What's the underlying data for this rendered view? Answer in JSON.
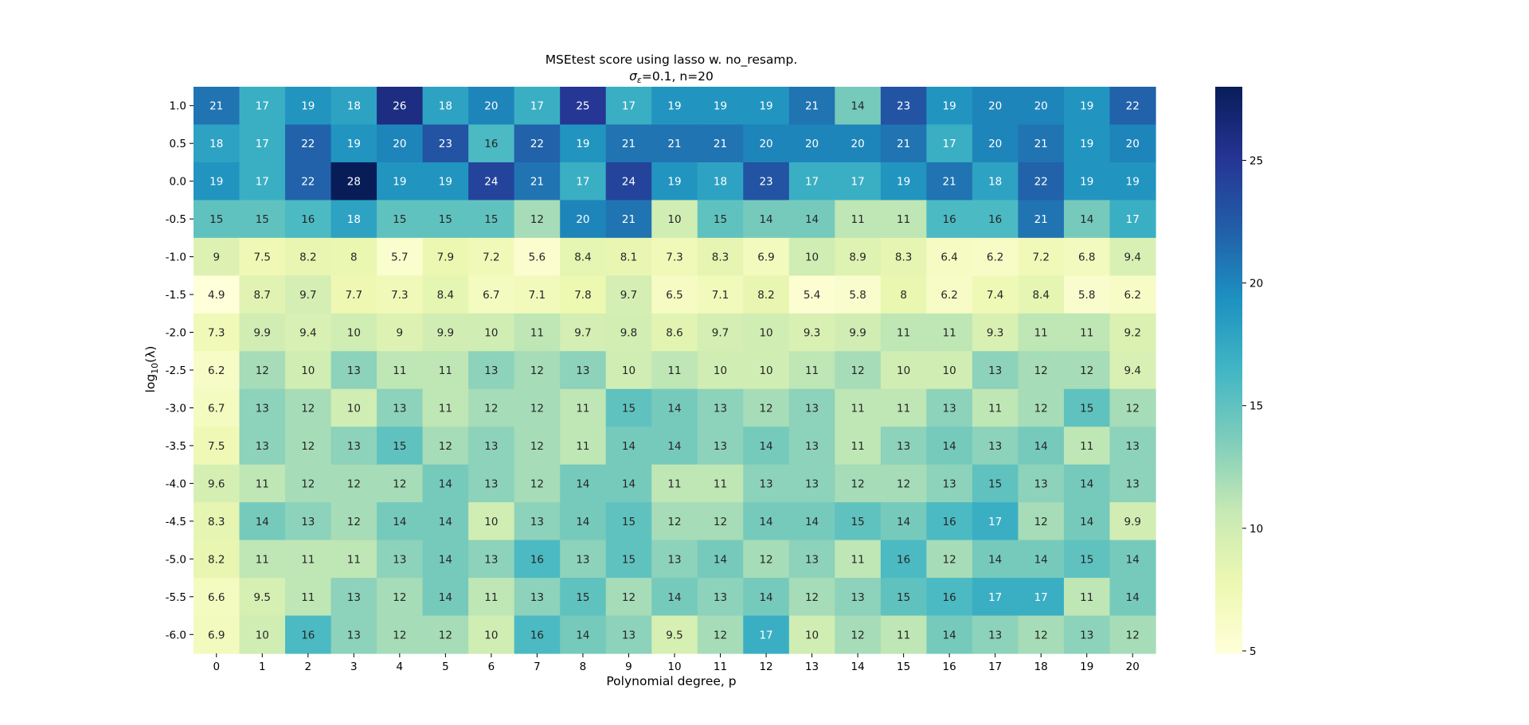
{
  "chart_data": {
    "type": "heatmap",
    "title": "MSEtest score using lasso w. no_resamp.",
    "subtitle_sigma_symbol": "σ",
    "subtitle_sigma_sub": "ε",
    "subtitle_rest": "=0.1,  n=20",
    "xlabel": "Polynomial degree, p",
    "ylabel_prefix": "log",
    "ylabel_sub": "10",
    "ylabel_suffix": "(λ)",
    "x": [
      "0",
      "1",
      "2",
      "3",
      "4",
      "5",
      "6",
      "7",
      "8",
      "9",
      "10",
      "11",
      "12",
      "13",
      "14",
      "15",
      "16",
      "17",
      "18",
      "19",
      "20"
    ],
    "y": [
      "1.0",
      "0.5",
      "0.0",
      "-0.5",
      "-1.0",
      "-1.5",
      "-2.0",
      "-2.5",
      "-3.0",
      "-3.5",
      "-4.0",
      "-4.5",
      "-5.0",
      "-5.5",
      "-6.0"
    ],
    "values": [
      [
        21,
        17,
        19,
        18,
        26,
        18,
        20,
        17,
        25,
        17,
        19,
        19,
        19,
        21,
        14,
        23,
        19,
        20,
        20,
        19,
        22
      ],
      [
        18,
        17,
        22,
        19,
        20,
        23,
        16,
        22,
        19,
        21,
        21,
        21,
        20,
        20,
        20,
        21,
        17,
        20,
        21,
        19,
        20
      ],
      [
        19,
        17,
        22,
        28,
        19,
        19,
        24,
        21,
        17,
        24,
        19,
        18,
        23,
        17,
        17,
        19,
        21,
        18,
        22,
        19,
        19
      ],
      [
        15,
        15,
        16,
        18,
        15,
        15,
        15,
        12,
        20,
        21,
        10,
        15,
        14,
        14,
        11,
        11,
        16,
        16,
        21,
        14,
        17
      ],
      [
        9,
        7.5,
        8.2,
        8,
        5.7,
        7.9,
        7.2,
        5.6,
        8.4,
        8.1,
        7.3,
        8.3,
        6.9,
        10,
        8.9,
        8.3,
        6.4,
        6.2,
        7.2,
        6.8,
        9.4
      ],
      [
        4.9,
        8.7,
        9.7,
        7.7,
        7.3,
        8.4,
        6.7,
        7.1,
        7.8,
        9.7,
        6.5,
        7.1,
        8.2,
        5.4,
        5.8,
        8,
        6.2,
        7.4,
        8.4,
        5.8,
        6.2
      ],
      [
        7.3,
        9.9,
        9.4,
        10,
        9,
        9.9,
        10,
        11,
        9.7,
        9.8,
        8.6,
        9.7,
        10,
        9.3,
        9.9,
        11,
        11,
        9.3,
        11,
        11,
        9.2
      ],
      [
        6.2,
        12,
        10,
        13,
        11,
        11,
        13,
        12,
        13,
        10,
        11,
        10,
        10,
        11,
        12,
        10,
        10,
        13,
        12,
        12,
        9.4
      ],
      [
        6.7,
        13,
        12,
        10,
        13,
        11,
        12,
        12,
        11,
        15,
        14,
        13,
        12,
        13,
        11,
        11,
        13,
        11,
        12,
        15,
        12
      ],
      [
        7.5,
        13,
        12,
        13,
        15,
        12,
        13,
        12,
        11,
        14,
        14,
        13,
        14,
        13,
        11,
        13,
        14,
        13,
        14,
        11,
        13
      ],
      [
        9.6,
        11,
        12,
        12,
        12,
        14,
        13,
        12,
        14,
        14,
        11,
        11,
        13,
        13,
        12,
        12,
        13,
        15,
        13,
        14,
        13
      ],
      [
        8.3,
        14,
        13,
        12,
        14,
        14,
        10,
        13,
        14,
        15,
        12,
        12,
        14,
        14,
        15,
        14,
        16,
        17,
        12,
        14,
        9.9
      ],
      [
        8.2,
        11,
        11,
        11,
        13,
        14,
        13,
        16,
        13,
        15,
        13,
        14,
        12,
        13,
        11,
        16,
        12,
        14,
        14,
        15,
        14
      ],
      [
        6.6,
        9.5,
        11,
        13,
        12,
        14,
        11,
        13,
        15,
        12,
        14,
        13,
        14,
        12,
        13,
        15,
        16,
        17,
        17,
        11,
        14
      ],
      [
        6.9,
        10,
        16,
        13,
        12,
        12,
        10,
        16,
        14,
        13,
        9.5,
        12,
        17,
        10,
        12,
        11,
        14,
        13,
        12,
        13,
        12
      ]
    ],
    "colormap": "YlGnBu",
    "vmin": 4.9,
    "vmax": 28,
    "colorbar_ticks": [
      5,
      10,
      15,
      20,
      25
    ],
    "colorbar_tick_labels": [
      "5",
      "10",
      "15",
      "20",
      "25"
    ]
  }
}
